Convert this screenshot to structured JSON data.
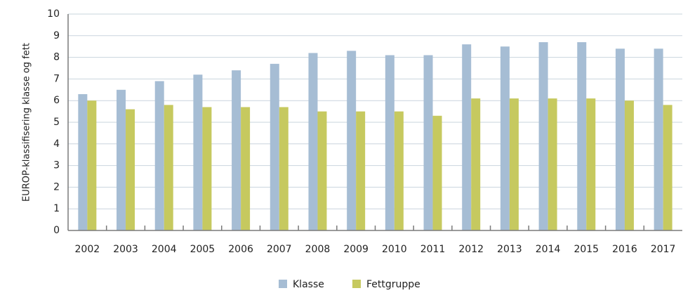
{
  "chart_data": {
    "type": "bar",
    "y_label": "EUROP-klassifisering klasse og fett",
    "categories": [
      "2002",
      "2003",
      "2004",
      "2005",
      "2006",
      "2007",
      "2008",
      "2009",
      "2010",
      "2011",
      "2012",
      "2013",
      "2014",
      "2015",
      "2016",
      "2017"
    ],
    "series": [
      {
        "name": "Klasse",
        "color": "#a6bdd4",
        "values": [
          6.3,
          6.5,
          6.9,
          7.2,
          7.4,
          7.7,
          8.2,
          8.3,
          8.1,
          8.1,
          8.6,
          8.5,
          8.7,
          8.7,
          8.4,
          8.4
        ]
      },
      {
        "name": "Fettgruppe",
        "color": "#c6c95f",
        "values": [
          6.0,
          5.6,
          5.8,
          5.7,
          5.7,
          5.7,
          5.5,
          5.5,
          5.5,
          5.3,
          6.1,
          6.1,
          6.1,
          6.1,
          6.0,
          5.8
        ]
      }
    ],
    "ylim": [
      0,
      10
    ],
    "yticks": [
      0,
      1,
      2,
      3,
      4,
      5,
      6,
      7,
      8,
      9,
      10
    ],
    "grid": true,
    "legend": "bottom"
  }
}
